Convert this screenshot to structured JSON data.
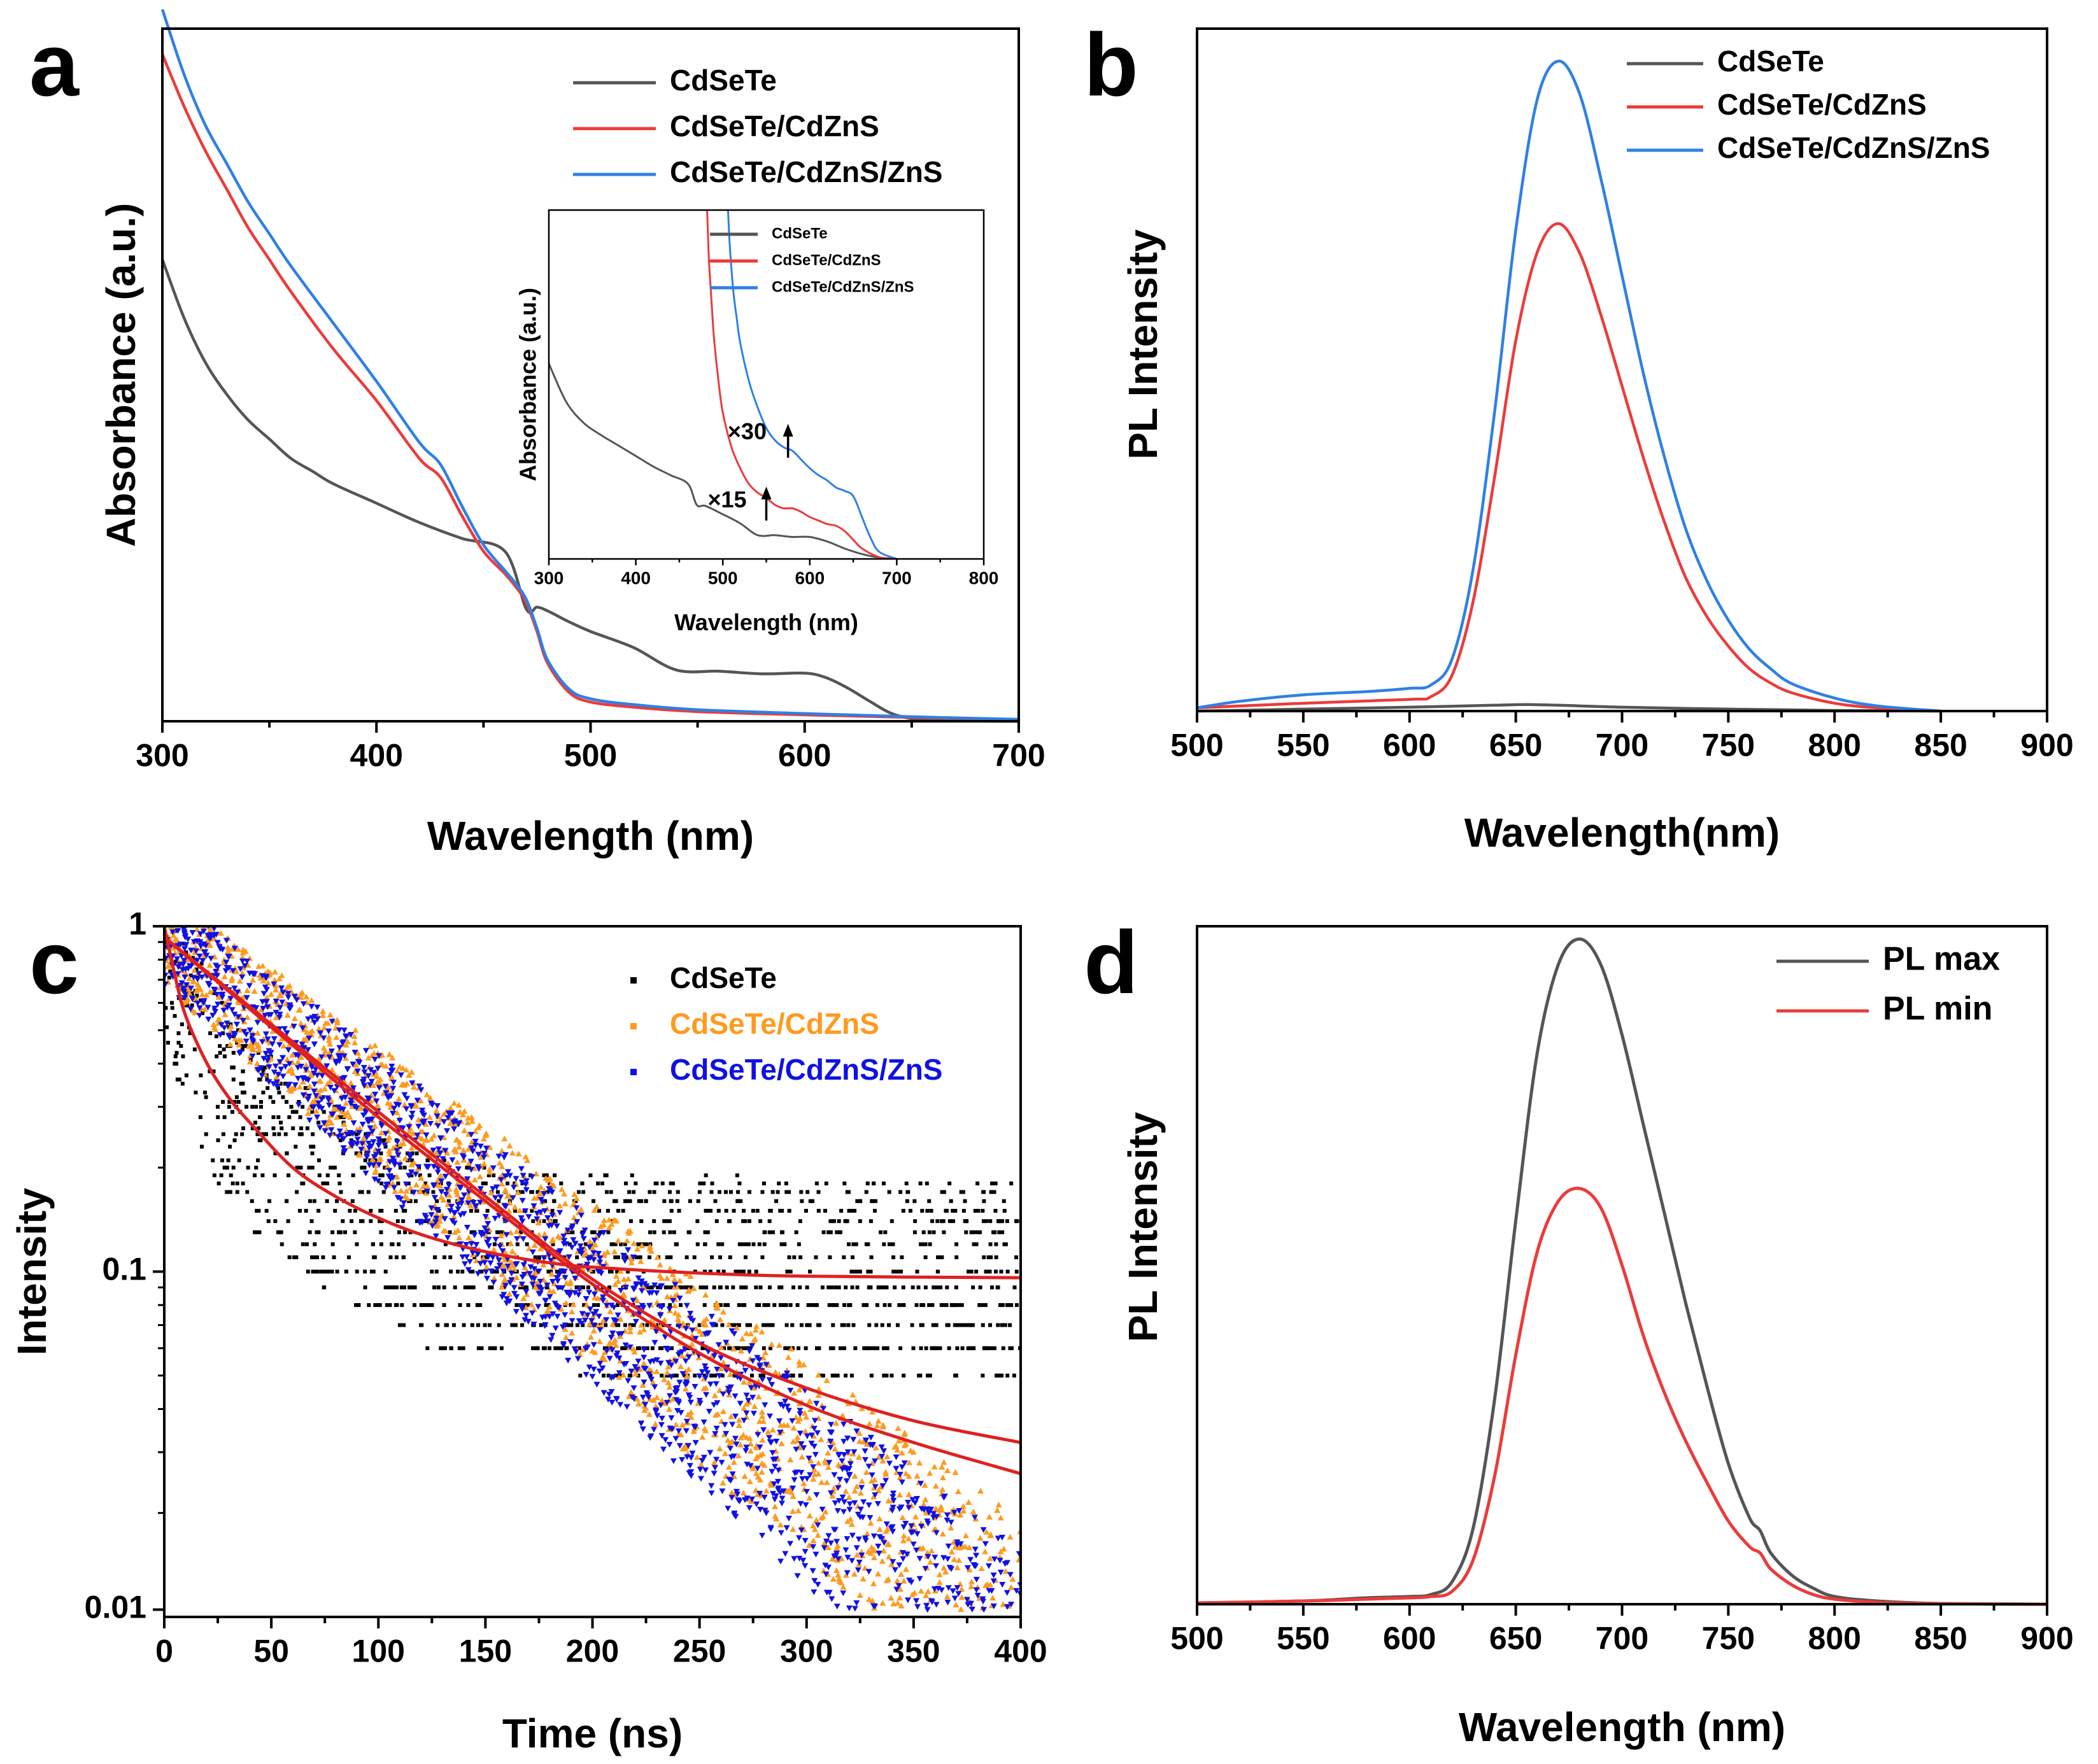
{
  "colors": {
    "black_series": "#555555",
    "red_series": "#ec3b3b",
    "blue_series": "#2f80e4",
    "fit_red": "#e02020",
    "orange_series": "#ff9a1f",
    "navy_series": "#1010e6",
    "scatter_black": "#000000"
  },
  "chart_data": [
    {
      "id": "a",
      "panel_label": "a",
      "type": "line",
      "xlabel": "Wavelength (nm)",
      "ylabel": "Absorbance (a.u.)",
      "xlim": [
        300,
        700
      ],
      "ylim": [
        0,
        10.8
      ],
      "xticks": [
        300,
        400,
        500,
        600,
        700
      ],
      "xtick_labels": [
        "300",
        "400",
        "500",
        "600",
        "700"
      ],
      "legend": {
        "position": "top-right",
        "entries": [
          "CdSeTe",
          "CdSeTe/CdZnS",
          "CdSeTe/CdZnS/ZnS"
        ]
      },
      "series": [
        {
          "name": "CdSeTe",
          "color": "#555555",
          "x": [
            300,
            310,
            320,
            330,
            340,
            350,
            360,
            370,
            380,
            400,
            420,
            440,
            460,
            470,
            475,
            480,
            490,
            500,
            520,
            540,
            560,
            580,
            600,
            610,
            620,
            630,
            640,
            650,
            660,
            700
          ],
          "y": [
            7.2,
            6.3,
            5.6,
            5.1,
            4.7,
            4.4,
            4.1,
            3.9,
            3.7,
            3.4,
            3.1,
            2.85,
            2.65,
            1.75,
            1.78,
            1.72,
            1.55,
            1.4,
            1.15,
            0.8,
            0.78,
            0.74,
            0.75,
            0.68,
            0.52,
            0.32,
            0.13,
            0.04,
            0.01,
            0.0
          ]
        },
        {
          "name": "CdSeTe/CdZnS",
          "color": "#ec3b3b",
          "x": [
            300,
            310,
            320,
            330,
            340,
            350,
            360,
            380,
            400,
            420,
            430,
            440,
            450,
            460,
            465,
            470,
            475,
            480,
            490,
            500,
            520,
            550,
            600,
            650,
            700
          ],
          "y": [
            10.4,
            9.6,
            8.9,
            8.3,
            7.7,
            7.2,
            6.7,
            5.8,
            5.0,
            4.1,
            3.8,
            3.2,
            2.65,
            2.3,
            2.1,
            1.85,
            1.4,
            0.9,
            0.45,
            0.3,
            0.22,
            0.15,
            0.1,
            0.06,
            0.03
          ]
        },
        {
          "name": "CdSeTe/CdZnS/ZnS",
          "color": "#2f80e4",
          "x": [
            300,
            310,
            320,
            330,
            340,
            350,
            360,
            380,
            400,
            420,
            430,
            440,
            450,
            460,
            465,
            470,
            475,
            480,
            490,
            500,
            520,
            550,
            600,
            650,
            700
          ],
          "y": [
            11.1,
            10.1,
            9.3,
            8.7,
            8.1,
            7.6,
            7.1,
            6.2,
            5.3,
            4.35,
            4.0,
            3.35,
            2.75,
            2.35,
            2.15,
            1.9,
            1.45,
            0.95,
            0.5,
            0.35,
            0.26,
            0.18,
            0.12,
            0.07,
            0.03
          ]
        }
      ],
      "inset": {
        "xlabel": "Wavelength (nm)",
        "ylabel": "Absorbance (a.u.)",
        "xlim": [
          300,
          800
        ],
        "ylim": [
          0,
          10
        ],
        "xticks": [
          300,
          400,
          500,
          600,
          700,
          800
        ],
        "xtick_labels": [
          "300",
          "400",
          "500",
          "600",
          "700",
          "800"
        ],
        "legend": {
          "position": "top-right",
          "entries": [
            "CdSeTe",
            "CdSeTe/CdZnS",
            "CdSeTe/CdZnS/ZnS"
          ]
        },
        "annotations": [
          {
            "text": "×15",
            "arrow_x": 550,
            "arrow_from": 1.1,
            "arrow_to": 2.0,
            "text_x": 505,
            "text_y": 1.65
          },
          {
            "text": "×30",
            "arrow_x": 575,
            "arrow_from": 2.9,
            "arrow_to": 3.8,
            "text_x": 528,
            "text_y": 3.6
          }
        ],
        "series": [
          {
            "name": "CdSeTe",
            "color": "#555555",
            "x": [
              300,
              320,
              340,
              360,
              380,
              400,
              420,
              440,
              460,
              470,
              480,
              500,
              520,
              540,
              560,
              580,
              600,
              620,
              640,
              660,
              680,
              700
            ],
            "y": [
              5.6,
              4.5,
              3.9,
              3.55,
              3.25,
              2.95,
              2.65,
              2.4,
              2.15,
              1.55,
              1.52,
              1.28,
              1.02,
              0.68,
              0.68,
              0.63,
              0.63,
              0.5,
              0.3,
              0.14,
              0.04,
              0.0
            ]
          },
          {
            "name": "CdSeTe/CdZnS",
            "color": "#ec3b3b",
            "x": [
              482,
              484,
              487,
              490,
              495,
              500,
              510,
              520,
              530,
              540,
              550,
              560,
              570,
              580,
              590,
              600,
              610,
              620,
              630,
              640,
              650,
              660,
              680,
              700
            ],
            "y": [
              10,
              8.6,
              7.4,
              6.3,
              5.1,
              4.2,
              3.2,
              2.6,
              2.15,
              1.9,
              1.75,
              1.55,
              1.45,
              1.45,
              1.35,
              1.2,
              1.1,
              1.0,
              0.95,
              0.8,
              0.55,
              0.3,
              0.05,
              0.0
            ]
          },
          {
            "name": "CdSeTe/CdZnS/ZnS",
            "color": "#2f80e4",
            "x": [
              506,
              508,
              512,
              516,
              520,
              530,
              540,
              550,
              560,
              570,
              580,
              590,
              600,
              610,
              620,
              630,
              640,
              650,
              660,
              670,
              680,
              700
            ],
            "y": [
              10,
              9.0,
              7.7,
              6.9,
              6.2,
              5.1,
              4.35,
              3.75,
              3.4,
              3.2,
              3.1,
              2.85,
              2.6,
              2.4,
              2.25,
              2.05,
              1.95,
              1.8,
              1.2,
              0.6,
              0.2,
              0.0
            ]
          }
        ]
      }
    },
    {
      "id": "b",
      "panel_label": "b",
      "type": "line",
      "xlabel": "Wavelength(nm)",
      "ylabel": "PL Intensity",
      "xlim": [
        500,
        900
      ],
      "ylim": [
        0,
        10.5
      ],
      "xticks": [
        500,
        550,
        600,
        650,
        700,
        750,
        800,
        850,
        900
      ],
      "xtick_labels": [
        "500",
        "550",
        "600",
        "650",
        "700",
        "750",
        "800",
        "850",
        "900"
      ],
      "legend": {
        "position": "top-right",
        "entries": [
          "CdSeTe",
          "CdSeTe/CdZnS",
          "CdSeTe/CdZnS/ZnS"
        ]
      },
      "series": [
        {
          "name": "CdSeTe",
          "color": "#555555",
          "x": [
            500,
            550,
            600,
            640,
            655,
            670,
            700,
            750,
            800,
            850
          ],
          "y": [
            0.0,
            0.03,
            0.06,
            0.09,
            0.1,
            0.09,
            0.06,
            0.03,
            0.01,
            0.0
          ]
        },
        {
          "name": "CdSeTe/CdZnS",
          "color": "#ec3b3b",
          "x": [
            500,
            550,
            600,
            610,
            620,
            630,
            640,
            650,
            660,
            670,
            680,
            690,
            700,
            710,
            720,
            730,
            740,
            750,
            760,
            770,
            780,
            800,
            820,
            850
          ],
          "y": [
            0.05,
            0.12,
            0.18,
            0.22,
            0.55,
            1.7,
            3.6,
            5.7,
            7.05,
            7.5,
            7.05,
            6.1,
            5.0,
            3.9,
            2.9,
            2.05,
            1.45,
            1.0,
            0.65,
            0.43,
            0.28,
            0.12,
            0.05,
            0.0
          ]
        },
        {
          "name": "CdSeTe/CdZnS/ZnS",
          "color": "#2f80e4",
          "x": [
            500,
            520,
            550,
            580,
            600,
            610,
            620,
            630,
            640,
            650,
            660,
            670,
            680,
            690,
            700,
            710,
            720,
            730,
            740,
            750,
            760,
            770,
            780,
            800,
            820,
            850
          ],
          "y": [
            0.05,
            0.15,
            0.25,
            0.3,
            0.35,
            0.4,
            0.8,
            2.2,
            4.6,
            7.4,
            9.4,
            10.0,
            9.5,
            8.2,
            6.7,
            5.2,
            3.9,
            2.8,
            2.0,
            1.4,
            0.95,
            0.65,
            0.42,
            0.2,
            0.08,
            0.0
          ]
        }
      ]
    },
    {
      "id": "c",
      "panel_label": "c",
      "type": "scatter",
      "xlabel": "Time (ns)",
      "ylabel": "Intensity",
      "xlim": [
        0,
        400
      ],
      "ylim": [
        0.01,
        1
      ],
      "yscale": "log",
      "xticks": [
        0,
        50,
        100,
        150,
        200,
        250,
        300,
        350,
        400
      ],
      "xtick_labels": [
        "0",
        "50",
        "100",
        "150",
        "200",
        "250",
        "300",
        "350",
        "400"
      ],
      "yticks": [
        0.01,
        0.1,
        1
      ],
      "ytick_labels": [
        "0.01",
        "0.1",
        "1"
      ],
      "legend": {
        "position": "top-right",
        "entries": [
          "CdSeTe",
          "CdSeTe/CdZnS",
          "CdSeTe/CdZnS/ZnS"
        ]
      },
      "series": [
        {
          "name": "CdSeTe",
          "color": "#000000",
          "marker": "square",
          "model": {
            "A1": 0.45,
            "tau1": 6,
            "A2": 0.45,
            "tau2": 40,
            "offset": 0.097
          }
        },
        {
          "name": "CdSeTe/CdZnS",
          "color": "#ff9a1f",
          "marker": "triangle-up",
          "model": {
            "A1": 0.93,
            "tau1": 86,
            "offset": 0.0
          }
        },
        {
          "name": "CdSeTe/CdZnS/ZnS",
          "color": "#1010e6",
          "marker": "triangle-down",
          "model": {
            "A1": 0.93,
            "tau1": 82,
            "offset": 0.0
          }
        }
      ],
      "fits": [
        {
          "name": "fit-CdSeTe",
          "color": "#e02020",
          "x": [
            0,
            5,
            10,
            20,
            30,
            40,
            60,
            80,
            100,
            120,
            140,
            160,
            180,
            200,
            250,
            300,
            400
          ],
          "y": [
            1.0,
            0.72,
            0.55,
            0.4,
            0.32,
            0.27,
            0.2,
            0.165,
            0.143,
            0.128,
            0.118,
            0.111,
            0.106,
            0.103,
            0.099,
            0.097,
            0.096
          ]
        },
        {
          "name": "fit-CdSeTe/CdZnS",
          "color": "#e02020",
          "x": [
            0,
            50,
            100,
            150,
            200,
            250,
            300,
            350,
            400
          ],
          "y": [
            0.93,
            0.52,
            0.29,
            0.165,
            0.095,
            0.062,
            0.046,
            0.037,
            0.032
          ]
        },
        {
          "name": "fit-CdSeTe/CdZnS/ZnS",
          "color": "#e02020",
          "x": [
            0,
            50,
            100,
            150,
            200,
            250,
            300,
            350,
            400
          ],
          "y": [
            0.93,
            0.51,
            0.28,
            0.16,
            0.092,
            0.058,
            0.041,
            0.032,
            0.026
          ]
        }
      ]
    },
    {
      "id": "d",
      "panel_label": "d",
      "type": "line",
      "xlabel": "Wavelength (nm)",
      "ylabel": "PL Intensity",
      "xlim": [
        500,
        900
      ],
      "ylim": [
        0,
        10.6
      ],
      "xticks": [
        500,
        550,
        600,
        650,
        700,
        750,
        800,
        850,
        900
      ],
      "xtick_labels": [
        "500",
        "550",
        "600",
        "650",
        "700",
        "750",
        "800",
        "850",
        "900"
      ],
      "legend": {
        "position": "top-right",
        "entries": [
          "PL max",
          "PL min"
        ]
      },
      "series": [
        {
          "name": "PL max",
          "color": "#555555",
          "x": [
            500,
            550,
            580,
            600,
            610,
            620,
            630,
            640,
            650,
            660,
            670,
            680,
            690,
            700,
            710,
            720,
            730,
            740,
            750,
            760,
            765,
            770,
            780,
            790,
            800,
            820,
            850,
            900
          ],
          "y": [
            0.02,
            0.05,
            0.1,
            0.12,
            0.15,
            0.35,
            1.2,
            3.2,
            6.0,
            8.6,
            10.0,
            10.4,
            10.0,
            8.9,
            7.5,
            6.1,
            4.7,
            3.4,
            2.2,
            1.35,
            1.15,
            0.8,
            0.45,
            0.25,
            0.12,
            0.05,
            0.01,
            0.0
          ]
        },
        {
          "name": "PL min",
          "color": "#ec3b3b",
          "x": [
            500,
            550,
            580,
            600,
            610,
            620,
            630,
            640,
            650,
            660,
            670,
            680,
            690,
            700,
            710,
            720,
            730,
            740,
            750,
            760,
            765,
            770,
            780,
            790,
            800,
            820,
            850,
            900
          ],
          "y": [
            0.02,
            0.05,
            0.08,
            0.1,
            0.12,
            0.2,
            0.7,
            2.0,
            3.9,
            5.5,
            6.3,
            6.5,
            6.2,
            5.3,
            4.2,
            3.3,
            2.55,
            1.9,
            1.3,
            0.9,
            0.8,
            0.55,
            0.3,
            0.15,
            0.08,
            0.03,
            0.01,
            0.0
          ]
        }
      ]
    }
  ]
}
